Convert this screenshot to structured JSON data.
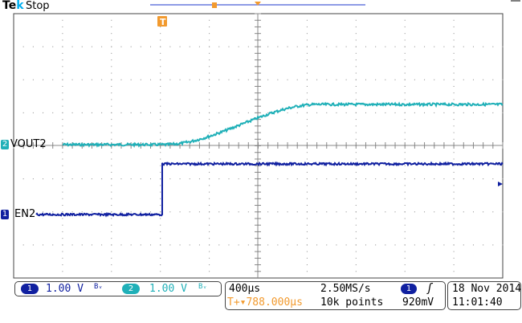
{
  "header": {
    "brand_left": "Te",
    "brand_right": "k",
    "status": "Stop"
  },
  "colors": {
    "ch1": "#1020a0",
    "ch2": "#20b0b8",
    "trigger": "#f29a2e",
    "grid": "#999999"
  },
  "channels": {
    "ch2": {
      "badge": "2",
      "name": "VOUT2"
    },
    "ch1": {
      "badge": "1",
      "name": "EN2"
    }
  },
  "trigger_marker": "T",
  "readout": {
    "ch1_scale_badge": "1",
    "ch1_scale": "1.00 V",
    "ch1_bw": "Bᵥ",
    "ch2_scale_badge": "2",
    "ch2_scale": "1.00 V",
    "ch2_bw": "Bᵥ",
    "timebase": "400µs",
    "sample_rate": "2.50MS/s",
    "trig_badge": "1",
    "trig_slope": "ʃ",
    "trig_pos": "T+▾788.000µs",
    "record_length": "10k points",
    "trig_level": "920mV",
    "date": "18 Nov 2014",
    "time": "11:01:40"
  }
}
